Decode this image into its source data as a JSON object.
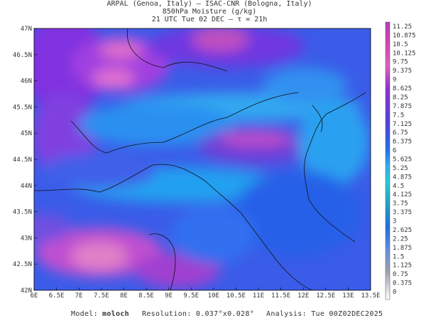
{
  "header": {
    "line1": "ARPAL (Genoa, Italy)  –  ISAC-CNR (Bologna, Italy)",
    "line2": "850hPa Moisture (g/kg)",
    "line3": "21 UTC Tue 02 DEC  –  τ = 21h"
  },
  "map": {
    "lat_labels": [
      "47N",
      "46.5N",
      "46N",
      "45.5N",
      "45N",
      "44.5N",
      "44N",
      "43.5N",
      "43N",
      "42.5N",
      "42N"
    ],
    "lon_labels": [
      "6E",
      "6.5E",
      "7E",
      "7.5E",
      "8E",
      "8.5E",
      "9E",
      "9.5E",
      "10E",
      "10.5E",
      "11E",
      "11.5E",
      "12E",
      "12.5E",
      "13E",
      "13.5E"
    ]
  },
  "colorbar": {
    "labels": [
      "11.25",
      "10.875",
      "10.5",
      "10.125",
      "9.75",
      "9.375",
      "9",
      "8.625",
      "8.25",
      "7.875",
      "7.5",
      "7.125",
      "6.75",
      "6.375",
      "6",
      "5.625",
      "5.25",
      "4.875",
      "4.5",
      "4.125",
      "3.75",
      "3.375",
      "3",
      "2.625",
      "2.25",
      "1.875",
      "1.5",
      "1.125",
      "0.75",
      "0.375",
      "0"
    ]
  },
  "footer": {
    "model_label": "Model:",
    "model": "moloch",
    "resolution": "Resolution: 0.037°x0.028°",
    "analysis": "Analysis: Tue 00Z02DEC2025"
  }
}
